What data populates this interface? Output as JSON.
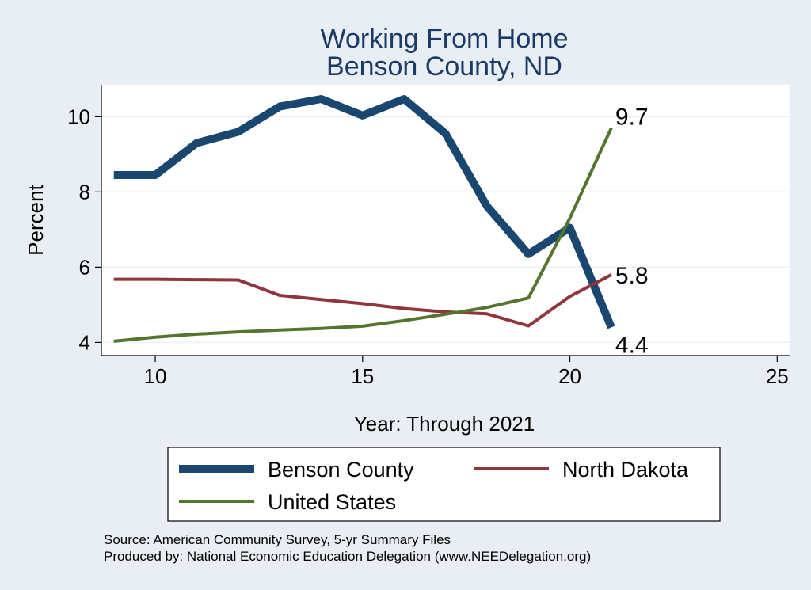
{
  "chart_data": {
    "type": "line",
    "title_lines": [
      "Working From Home",
      "Benson County, ND"
    ],
    "xlabel": "Year: Through 2021",
    "ylabel": "Percent",
    "xlim": [
      8.7,
      25.3
    ],
    "ylim": [
      3.65,
      10.85
    ],
    "xticks": [
      10,
      15,
      20,
      25
    ],
    "yticks": [
      4,
      6,
      8,
      10
    ],
    "grid": true,
    "legend_position": "bottom",
    "x": [
      9,
      10,
      11,
      12,
      13,
      14,
      15,
      16,
      17,
      18,
      19,
      20,
      21
    ],
    "series": [
      {
        "name": "Benson County",
        "color": "#1a476f",
        "width": 10,
        "values": [
          8.45,
          8.45,
          9.3,
          9.6,
          10.27,
          10.47,
          10.03,
          10.47,
          9.55,
          7.62,
          6.35,
          7.05,
          4.4
        ],
        "end_label": "4.4"
      },
      {
        "name": "North Dakota",
        "color": "#90353b",
        "width": 4,
        "values": [
          5.68,
          5.68,
          5.67,
          5.66,
          5.25,
          5.14,
          5.03,
          4.9,
          4.81,
          4.76,
          4.44,
          5.22,
          5.8
        ],
        "end_label": "5.8"
      },
      {
        "name": "United States",
        "color": "#55752f",
        "width": 4,
        "values": [
          4.03,
          4.14,
          4.22,
          4.28,
          4.33,
          4.37,
          4.43,
          4.58,
          4.75,
          4.93,
          5.18,
          7.3,
          9.7
        ],
        "end_label": "9.7"
      }
    ]
  },
  "notes": [
    "Source: American Community Survey, 5-yr Summary Files",
    "Produced by: National Economic Education Delegation (www.NEEDelegation.org)"
  ]
}
